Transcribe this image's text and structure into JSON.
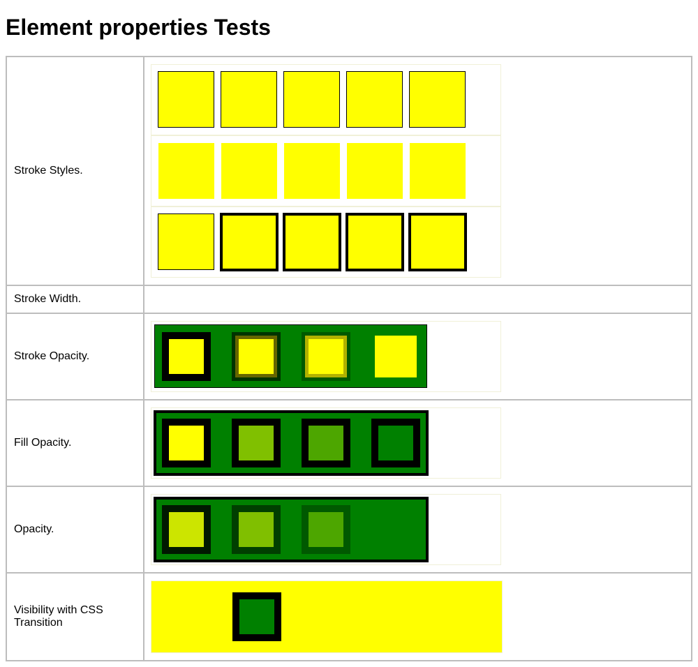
{
  "page": {
    "title": "Element properties Tests"
  },
  "rows": [
    {
      "label": "Stroke Styles."
    },
    {
      "label": "Stroke Width."
    },
    {
      "label": "Stroke Opacity."
    },
    {
      "label": "Fill Opacity."
    },
    {
      "label": "Opacity."
    },
    {
      "label": "Visibility with CSS Transition"
    }
  ],
  "colors": {
    "fill": "#ffff00",
    "background": "#008000",
    "stroke": "#000000",
    "grid": "#bdbdbd"
  }
}
